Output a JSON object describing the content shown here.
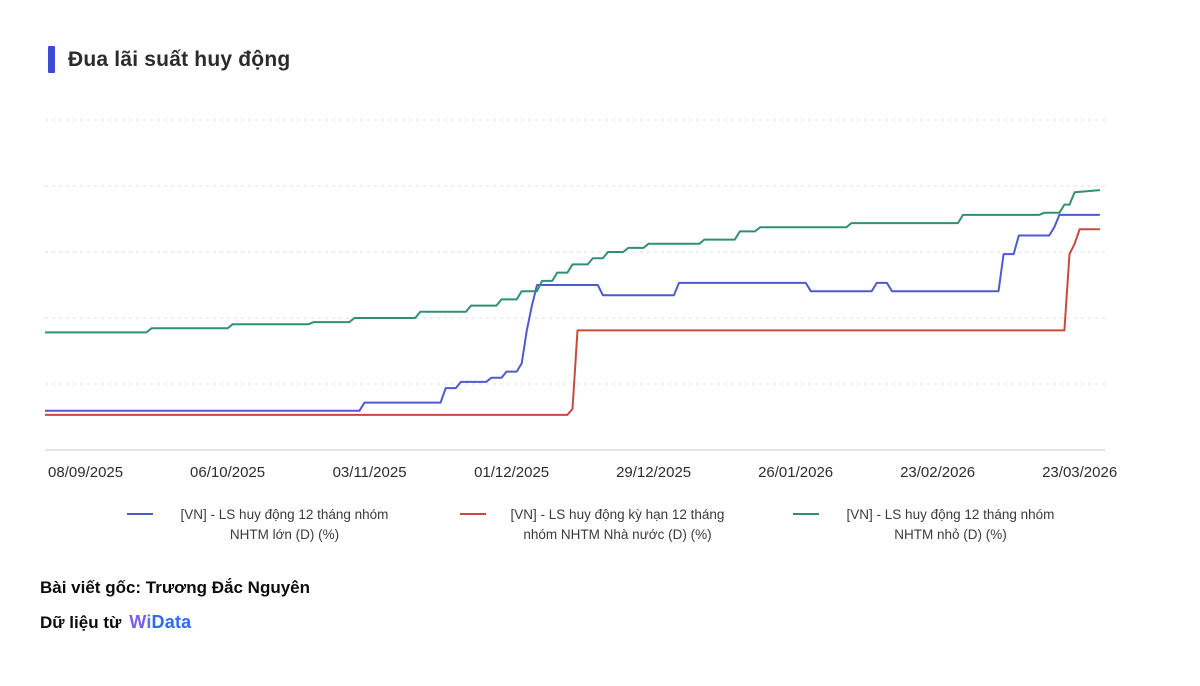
{
  "title": "Đua lãi suất huy động",
  "accent_color": "#3b4ad9",
  "chart_data": {
    "type": "line",
    "title": "Đua lãi suất huy động",
    "xlabel": "",
    "ylabel": "",
    "grid": true,
    "legend_position": "bottom",
    "x_domain": [
      -8,
      201
    ],
    "y_domain": [
      4.6,
      6.2
    ],
    "grid_values": [
      4.6,
      4.92,
      5.24,
      5.56,
      5.88,
      6.2
    ],
    "x_ticks": [
      {
        "t": 0,
        "label": "08/09/2025"
      },
      {
        "t": 28,
        "label": "06/10/2025"
      },
      {
        "t": 56,
        "label": "03/11/2025"
      },
      {
        "t": 84,
        "label": "01/12/2025"
      },
      {
        "t": 112,
        "label": "29/12/2025"
      },
      {
        "t": 140,
        "label": "26/01/2026"
      },
      {
        "t": 168,
        "label": "23/02/2026"
      },
      {
        "t": 196,
        "label": "23/03/2026"
      }
    ],
    "series": [
      {
        "name": "[VN] - LS huy động 12 tháng nhóm NHTM lớn (D) (%)",
        "color": "#4f5acb",
        "points": [
          [
            -8,
            4.79
          ],
          [
            54,
            4.79
          ],
          [
            55,
            4.83
          ],
          [
            70,
            4.83
          ],
          [
            71,
            4.9
          ],
          [
            73,
            4.9
          ],
          [
            74,
            4.93
          ],
          [
            79,
            4.93
          ],
          [
            80,
            4.95
          ],
          [
            82,
            4.95
          ],
          [
            83,
            4.98
          ],
          [
            85,
            4.98
          ],
          [
            86,
            5.02
          ],
          [
            87,
            5.18
          ],
          [
            88,
            5.3
          ],
          [
            89,
            5.4
          ],
          [
            101,
            5.4
          ],
          [
            102,
            5.35
          ],
          [
            116,
            5.35
          ],
          [
            117,
            5.41
          ],
          [
            142,
            5.41
          ],
          [
            143,
            5.37
          ],
          [
            155,
            5.37
          ],
          [
            156,
            5.41
          ],
          [
            158,
            5.41
          ],
          [
            159,
            5.37
          ],
          [
            180,
            5.37
          ],
          [
            181,
            5.55
          ],
          [
            183,
            5.55
          ],
          [
            184,
            5.64
          ],
          [
            190,
            5.64
          ],
          [
            191,
            5.68
          ],
          [
            192,
            5.74
          ],
          [
            200,
            5.74
          ]
        ]
      },
      {
        "name": "[VN] - LS huy động kỳ hạn 12 tháng nhóm NHTM Nhà nước (D) (%)",
        "color": "#c64a3f",
        "points": [
          [
            -8,
            4.77
          ],
          [
            95,
            4.77
          ],
          [
            96,
            4.8
          ],
          [
            97,
            5.18
          ],
          [
            193,
            5.18
          ],
          [
            194,
            5.55
          ],
          [
            195,
            5.6
          ],
          [
            196,
            5.67
          ],
          [
            200,
            5.67
          ]
        ]
      },
      {
        "name": "[VN] - LS huy động 12 tháng nhóm NHTM nhỏ (D) (%)",
        "color": "#2f8f77",
        "points": [
          [
            -8,
            5.17
          ],
          [
            12,
            5.17
          ],
          [
            13,
            5.19
          ],
          [
            28,
            5.19
          ],
          [
            29,
            5.21
          ],
          [
            44,
            5.21
          ],
          [
            45,
            5.22
          ],
          [
            52,
            5.22
          ],
          [
            53,
            5.24
          ],
          [
            65,
            5.24
          ],
          [
            66,
            5.27
          ],
          [
            75,
            5.27
          ],
          [
            76,
            5.3
          ],
          [
            81,
            5.3
          ],
          [
            82,
            5.33
          ],
          [
            85,
            5.33
          ],
          [
            86,
            5.37
          ],
          [
            89,
            5.37
          ],
          [
            90,
            5.42
          ],
          [
            92,
            5.42
          ],
          [
            93,
            5.46
          ],
          [
            95,
            5.46
          ],
          [
            96,
            5.5
          ],
          [
            99,
            5.5
          ],
          [
            100,
            5.53
          ],
          [
            102,
            5.53
          ],
          [
            103,
            5.56
          ],
          [
            106,
            5.56
          ],
          [
            107,
            5.58
          ],
          [
            110,
            5.58
          ],
          [
            111,
            5.6
          ],
          [
            121,
            5.6
          ],
          [
            122,
            5.62
          ],
          [
            128,
            5.62
          ],
          [
            129,
            5.66
          ],
          [
            132,
            5.66
          ],
          [
            133,
            5.68
          ],
          [
            150,
            5.68
          ],
          [
            151,
            5.7
          ],
          [
            172,
            5.7
          ],
          [
            173,
            5.74
          ],
          [
            188,
            5.74
          ],
          [
            189,
            5.75
          ],
          [
            192,
            5.75
          ],
          [
            193,
            5.79
          ],
          [
            194,
            5.79
          ],
          [
            195,
            5.85
          ],
          [
            200,
            5.86
          ]
        ]
      }
    ],
    "axis_color": "#c9c9c9",
    "gridline_color": "#dddddd",
    "tick_label_color": "#2d2d2d"
  },
  "footer": {
    "line1": "Bài viết gốc: Trương Đắc Nguyên",
    "line2_prefix": "Dữ liệu từ",
    "logo": {
      "w_text": "W",
      "i_text": "i",
      "rest_text": "Data",
      "w_color": "#7a5cf5",
      "i_color": "#5a6df5",
      "rest_color": "#2e6bf0"
    }
  }
}
